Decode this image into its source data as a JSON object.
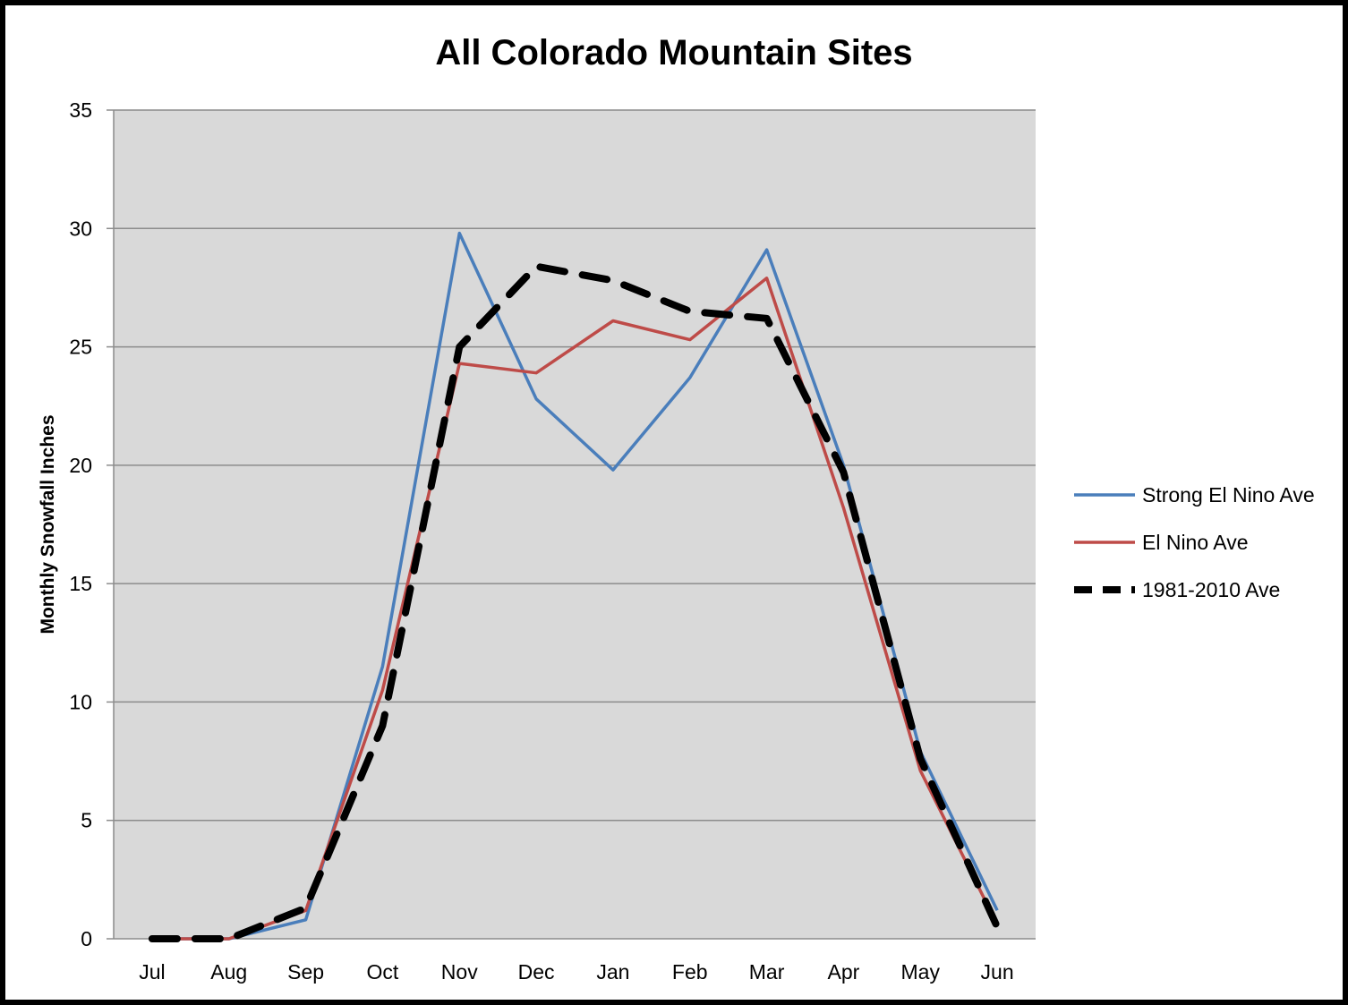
{
  "chart_data": {
    "type": "line",
    "title": "All Colorado Mountain Sites",
    "xlabel": "",
    "ylabel": "Monthly Snowfall Inches",
    "categories": [
      "Jul",
      "Aug",
      "Sep",
      "Oct",
      "Nov",
      "Dec",
      "Jan",
      "Feb",
      "Mar",
      "Apr",
      "May",
      "Jun"
    ],
    "ylim": [
      0,
      35
    ],
    "yticks": [
      0,
      5,
      10,
      15,
      20,
      25,
      30,
      35
    ],
    "grid": true,
    "legend_position": "right",
    "plot_background": "#d9d9d9",
    "series": [
      {
        "name": "Strong El Nino Ave",
        "color": "#4a7ebb",
        "style": "solid",
        "values": [
          0,
          0,
          0.8,
          11.5,
          29.8,
          22.8,
          19.8,
          23.7,
          29.1,
          20.0,
          7.9,
          1.2
        ]
      },
      {
        "name": "El Nino Ave",
        "color": "#be4b48",
        "style": "solid",
        "values": [
          0,
          0,
          1.2,
          10.5,
          24.3,
          23.9,
          26.1,
          25.3,
          27.9,
          18.2,
          7.1,
          0.6
        ]
      },
      {
        "name": "1981-2010 Ave",
        "color": "#000000",
        "style": "dashed",
        "values": [
          0,
          0,
          1.3,
          9.0,
          25.0,
          28.4,
          27.8,
          26.5,
          26.2,
          19.7,
          7.6,
          0.5
        ]
      }
    ]
  }
}
